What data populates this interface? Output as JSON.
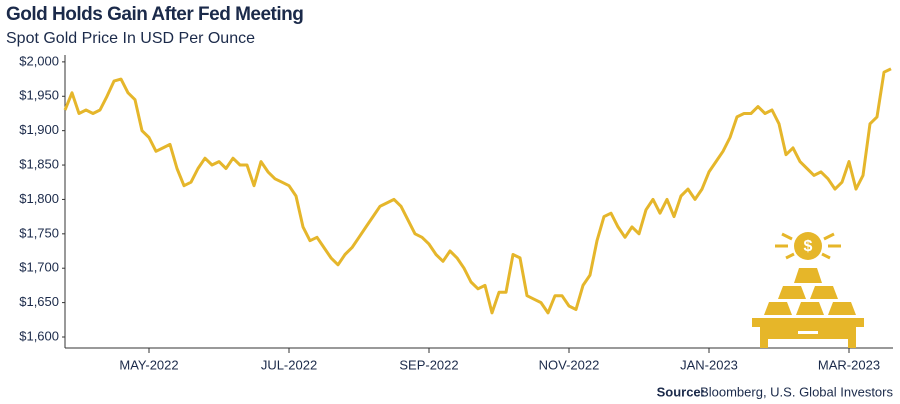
{
  "chart_data": {
    "type": "line",
    "title": "Gold Holds Gain After Fed Meeting",
    "subtitle": "Spot Gold Price In USD Per Ounce",
    "source_label": "Source:",
    "source": "Bloomberg, U.S. Global Investors",
    "categories": [
      null,
      null,
      null,
      null,
      null,
      null,
      null,
      null,
      null,
      null,
      null,
      null,
      "MAY-2022",
      null,
      null,
      null,
      null,
      null,
      null,
      null,
      null,
      null,
      null,
      null,
      null,
      null,
      null,
      null,
      null,
      null,
      null,
      null,
      "JUL-2022",
      null,
      null,
      null,
      null,
      null,
      null,
      null,
      null,
      null,
      null,
      null,
      null,
      null,
      null,
      null,
      null,
      null,
      null,
      null,
      "SEP-2022",
      null,
      null,
      null,
      null,
      null,
      null,
      null,
      null,
      null,
      null,
      null,
      null,
      null,
      null,
      null,
      null,
      null,
      null,
      null,
      "NOV-2022",
      null,
      null,
      null,
      null,
      null,
      null,
      null,
      null,
      null,
      null,
      null,
      null,
      null,
      null,
      null,
      null,
      null,
      null,
      null,
      "JAN-2023",
      null,
      null,
      null,
      null,
      null,
      null,
      null,
      null,
      null,
      null,
      null,
      null,
      null,
      null,
      null,
      null,
      null,
      null,
      null,
      "MAR-2023",
      null,
      null,
      null,
      null,
      null,
      null
    ],
    "series": [
      {
        "name": "Spot Gold",
        "color": "#e5b62b",
        "values": [
          1930,
          1955,
          1925,
          1930,
          1925,
          1930,
          1950,
          1972,
          1975,
          1955,
          1945,
          1900,
          1890,
          1870,
          1875,
          1880,
          1845,
          1820,
          1825,
          1845,
          1860,
          1850,
          1855,
          1845,
          1860,
          1850,
          1850,
          1820,
          1855,
          1840,
          1830,
          1825,
          1820,
          1805,
          1760,
          1740,
          1745,
          1730,
          1715,
          1705,
          1720,
          1730,
          1745,
          1760,
          1775,
          1790,
          1795,
          1800,
          1790,
          1770,
          1750,
          1745,
          1735,
          1720,
          1710,
          1725,
          1715,
          1700,
          1680,
          1670,
          1675,
          1635,
          1665,
          1665,
          1720,
          1715,
          1660,
          1655,
          1650,
          1635,
          1660,
          1660,
          1645,
          1640,
          1675,
          1690,
          1740,
          1775,
          1780,
          1760,
          1745,
          1760,
          1750,
          1785,
          1800,
          1780,
          1800,
          1775,
          1805,
          1815,
          1800,
          1815,
          1840,
          1855,
          1870,
          1890,
          1920,
          1925,
          1925,
          1935,
          1925,
          1930,
          1910,
          1865,
          1875,
          1855,
          1845,
          1835,
          1840,
          1830,
          1815,
          1825,
          1855,
          1815,
          1835,
          1910,
          1920,
          1985,
          1990
        ]
      }
    ],
    "ylim": [
      1584,
      2010
    ],
    "yticks": [
      {
        "value": 1600,
        "label": "$1,600"
      },
      {
        "value": 1650,
        "label": "$1,650"
      },
      {
        "value": 1700,
        "label": "$1,700"
      },
      {
        "value": 1750,
        "label": "$1,750"
      },
      {
        "value": 1800,
        "label": "$1,800"
      },
      {
        "value": 1850,
        "label": "$1,850"
      },
      {
        "value": 1900,
        "label": "$1,900"
      },
      {
        "value": 1950,
        "label": "$1,950"
      },
      {
        "value": 2000,
        "label": "$2,000"
      }
    ],
    "grid": false
  }
}
